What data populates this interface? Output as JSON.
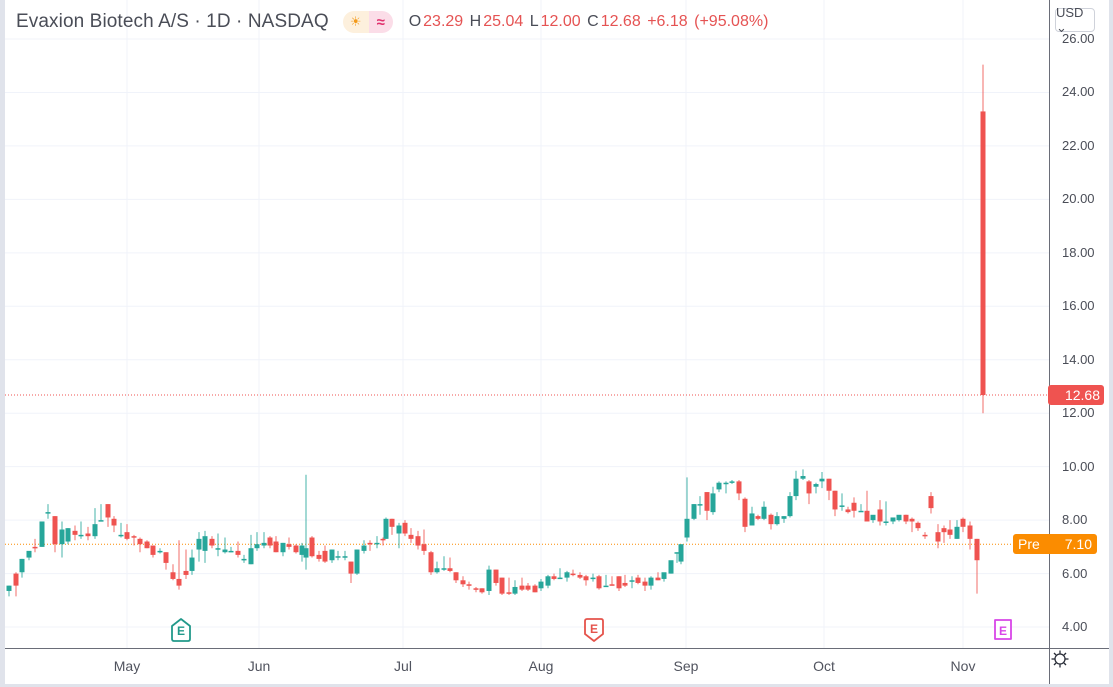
{
  "header": {
    "symbol_title": "Evaxion Biotech A/S · 1D · NASDAQ",
    "session_icon": "sun-icon",
    "session_glyph": "☀",
    "delay_icon": "wave-icon",
    "delay_glyph": "≈",
    "ohlc": {
      "open_key": "O",
      "open": "23.29",
      "high_key": "H",
      "high": "25.04",
      "low_key": "L",
      "low": "12.00",
      "close_key": "C",
      "close": "12.68",
      "change": "+6.18",
      "change_pct": "(+95.08%)"
    }
  },
  "currency_button": {
    "label": "USD ⌄"
  },
  "price_axis": {
    "ticks": [
      "26.00",
      "24.00",
      "22.00",
      "20.00",
      "18.00",
      "16.00",
      "14.00",
      "12.00",
      "10.00",
      "8.00",
      "6.00",
      "4.00"
    ],
    "last_price_tag": "12.68",
    "premarket_label": "Pre",
    "premarket_value": "7.10"
  },
  "time_axis": {
    "months": [
      {
        "label": "May",
        "x": 127
      },
      {
        "label": "Jun",
        "x": 259
      },
      {
        "label": "Jul",
        "x": 403
      },
      {
        "label": "Aug",
        "x": 541
      },
      {
        "label": "Sep",
        "x": 686
      },
      {
        "label": "Oct",
        "x": 824
      },
      {
        "label": "Nov",
        "x": 963
      }
    ]
  },
  "earnings_markers": [
    {
      "label": "E",
      "x": 181,
      "color": "#22998a",
      "shape": "house"
    },
    {
      "label": "E",
      "x": 594,
      "color": "#e5534b",
      "shape": "shield"
    },
    {
      "label": "E",
      "x": 1003,
      "color": "#d846e8",
      "shape": "square"
    }
  ],
  "settings_icon": "gear-icon",
  "colors": {
    "up": "#26a69a",
    "down": "#ef5350",
    "last_price": "#ef5350",
    "premarket": "#fb8c00",
    "grid": "#f0f3fa",
    "axis_text": "#4a4d57"
  },
  "chart_data": {
    "type": "candlestick",
    "title": "Evaxion Biotech A/S · 1D · NASDAQ",
    "ylabel": "USD",
    "ylim": [
      3.6,
      26.2
    ],
    "yticks": [
      4,
      6,
      8,
      10,
      12,
      14,
      16,
      18,
      20,
      22,
      24,
      26
    ],
    "xticks": [
      "May",
      "Jun",
      "Jul",
      "Aug",
      "Sep",
      "Oct",
      "Nov"
    ],
    "grid": true,
    "last_price": 12.68,
    "premarket_price": 7.1,
    "candles": [
      {
        "x": 9,
        "o": 5.35,
        "h": 5.55,
        "l": 5.15,
        "c": 5.55
      },
      {
        "x": 16,
        "o": 6.0,
        "h": 6.05,
        "l": 5.15,
        "c": 5.55
      },
      {
        "x": 22,
        "o": 6.05,
        "h": 6.55,
        "l": 5.85,
        "c": 6.55
      },
      {
        "x": 29,
        "o": 6.6,
        "h": 6.7,
        "l": 6.5,
        "c": 6.85
      },
      {
        "x": 35,
        "o": 7.0,
        "h": 7.3,
        "l": 6.8,
        "c": 6.95
      },
      {
        "x": 42,
        "o": 7.0,
        "h": 7.95,
        "l": 7.0,
        "c": 7.95
      },
      {
        "x": 48,
        "o": 8.3,
        "h": 8.6,
        "l": 8.05,
        "c": 8.3
      },
      {
        "x": 55,
        "o": 8.15,
        "h": 8.15,
        "l": 6.8,
        "c": 7.1
      },
      {
        "x": 62,
        "o": 7.1,
        "h": 7.95,
        "l": 6.6,
        "c": 7.65
      },
      {
        "x": 68,
        "o": 7.2,
        "h": 7.7,
        "l": 7.1,
        "c": 7.7
      },
      {
        "x": 75,
        "o": 7.6,
        "h": 7.8,
        "l": 7.25,
        "c": 7.45
      },
      {
        "x": 81,
        "o": 7.4,
        "h": 7.95,
        "l": 7.3,
        "c": 7.45
      },
      {
        "x": 88,
        "o": 7.5,
        "h": 7.75,
        "l": 7.25,
        "c": 7.4
      },
      {
        "x": 95,
        "o": 7.4,
        "h": 8.45,
        "l": 7.3,
        "c": 7.85
      },
      {
        "x": 101,
        "o": 8.0,
        "h": 8.6,
        "l": 7.95,
        "c": 8.0
      },
      {
        "x": 108,
        "o": 8.6,
        "h": 8.6,
        "l": 7.75,
        "c": 8.1
      },
      {
        "x": 114,
        "o": 8.05,
        "h": 8.15,
        "l": 7.55,
        "c": 7.8
      },
      {
        "x": 121,
        "o": 7.4,
        "h": 7.9,
        "l": 7.35,
        "c": 7.45
      },
      {
        "x": 127,
        "o": 7.55,
        "h": 7.85,
        "l": 7.25,
        "c": 7.3
      },
      {
        "x": 134,
        "o": 7.4,
        "h": 7.45,
        "l": 7.05,
        "c": 7.35
      },
      {
        "x": 140,
        "o": 7.3,
        "h": 7.35,
        "l": 6.8,
        "c": 7.1
      },
      {
        "x": 147,
        "o": 7.2,
        "h": 7.25,
        "l": 6.95,
        "c": 6.95
      },
      {
        "x": 153,
        "o": 7.05,
        "h": 7.05,
        "l": 6.6,
        "c": 6.7
      },
      {
        "x": 160,
        "o": 6.85,
        "h": 6.95,
        "l": 6.75,
        "c": 6.85
      },
      {
        "x": 166,
        "o": 6.8,
        "h": 6.8,
        "l": 6.15,
        "c": 6.4
      },
      {
        "x": 173,
        "o": 6.05,
        "h": 6.35,
        "l": 5.75,
        "c": 5.8
      },
      {
        "x": 179,
        "o": 5.8,
        "h": 7.25,
        "l": 5.4,
        "c": 5.55
      },
      {
        "x": 186,
        "o": 6.1,
        "h": 6.9,
        "l": 5.8,
        "c": 5.95
      },
      {
        "x": 192,
        "o": 6.1,
        "h": 6.9,
        "l": 5.95,
        "c": 6.6
      },
      {
        "x": 199,
        "o": 6.9,
        "h": 7.55,
        "l": 6.45,
        "c": 7.3
      },
      {
        "x": 205,
        "o": 6.85,
        "h": 7.6,
        "l": 6.4,
        "c": 7.4
      },
      {
        "x": 212,
        "o": 7.3,
        "h": 7.4,
        "l": 6.95,
        "c": 7.05
      },
      {
        "x": 218,
        "o": 6.95,
        "h": 7.5,
        "l": 6.65,
        "c": 6.95
      },
      {
        "x": 225,
        "o": 6.8,
        "h": 7.35,
        "l": 6.75,
        "c": 6.9
      },
      {
        "x": 231,
        "o": 6.8,
        "h": 7.0,
        "l": 6.8,
        "c": 6.85
      },
      {
        "x": 238,
        "o": 6.85,
        "h": 7.2,
        "l": 6.6,
        "c": 6.7
      },
      {
        "x": 244,
        "o": 6.55,
        "h": 6.7,
        "l": 6.4,
        "c": 6.55
      },
      {
        "x": 251,
        "o": 6.35,
        "h": 7.45,
        "l": 6.35,
        "c": 6.95
      },
      {
        "x": 257,
        "o": 6.95,
        "h": 7.55,
        "l": 6.85,
        "c": 7.1
      },
      {
        "x": 264,
        "o": 7.05,
        "h": 7.55,
        "l": 6.95,
        "c": 7.15
      },
      {
        "x": 270,
        "o": 7.35,
        "h": 7.4,
        "l": 6.95,
        "c": 7.05
      },
      {
        "x": 276,
        "o": 7.2,
        "h": 7.4,
        "l": 6.8,
        "c": 6.8
      },
      {
        "x": 283,
        "o": 6.8,
        "h": 7.15,
        "l": 6.65,
        "c": 7.15
      },
      {
        "x": 289,
        "o": 7.1,
        "h": 7.35,
        "l": 6.9,
        "c": 7.0
      },
      {
        "x": 296,
        "o": 7.05,
        "h": 7.1,
        "l": 6.75,
        "c": 6.8
      },
      {
        "x": 302,
        "o": 6.7,
        "h": 7.15,
        "l": 6.45,
        "c": 7.05
      },
      {
        "x": 306,
        "o": 6.6,
        "h": 9.7,
        "l": 6.15,
        "c": 6.95
      },
      {
        "x": 312,
        "o": 7.35,
        "h": 7.4,
        "l": 6.6,
        "c": 6.65
      },
      {
        "x": 319,
        "o": 6.7,
        "h": 6.85,
        "l": 6.45,
        "c": 6.55
      },
      {
        "x": 325,
        "o": 6.85,
        "h": 7.05,
        "l": 6.4,
        "c": 6.45
      },
      {
        "x": 332,
        "o": 6.5,
        "h": 6.9,
        "l": 6.4,
        "c": 6.9
      },
      {
        "x": 338,
        "o": 6.65,
        "h": 6.85,
        "l": 6.5,
        "c": 6.65
      },
      {
        "x": 345,
        "o": 6.6,
        "h": 6.85,
        "l": 6.5,
        "c": 6.65
      },
      {
        "x": 351,
        "o": 6.45,
        "h": 6.45,
        "l": 5.65,
        "c": 6.0
      },
      {
        "x": 357,
        "o": 6.0,
        "h": 6.9,
        "l": 5.95,
        "c": 6.9
      },
      {
        "x": 364,
        "o": 6.85,
        "h": 7.25,
        "l": 6.75,
        "c": 7.05
      },
      {
        "x": 370,
        "o": 7.15,
        "h": 7.25,
        "l": 6.85,
        "c": 7.1
      },
      {
        "x": 377,
        "o": 7.15,
        "h": 7.4,
        "l": 6.95,
        "c": 7.15
      },
      {
        "x": 383,
        "o": 7.3,
        "h": 7.35,
        "l": 7.05,
        "c": 7.25
      },
      {
        "x": 386,
        "o": 7.3,
        "h": 8.1,
        "l": 7.3,
        "c": 8.05
      },
      {
        "x": 392,
        "o": 8.05,
        "h": 8.05,
        "l": 7.45,
        "c": 7.75
      },
      {
        "x": 399,
        "o": 7.5,
        "h": 7.9,
        "l": 6.95,
        "c": 7.8
      },
      {
        "x": 405,
        "o": 7.9,
        "h": 8.0,
        "l": 7.4,
        "c": 7.5
      },
      {
        "x": 411,
        "o": 7.45,
        "h": 7.7,
        "l": 7.15,
        "c": 7.3
      },
      {
        "x": 418,
        "o": 7.4,
        "h": 7.6,
        "l": 6.9,
        "c": 7.05
      },
      {
        "x": 424,
        "o": 7.1,
        "h": 7.65,
        "l": 6.7,
        "c": 6.85
      },
      {
        "x": 431,
        "o": 6.8,
        "h": 6.85,
        "l": 5.95,
        "c": 6.05
      },
      {
        "x": 437,
        "o": 6.05,
        "h": 6.45,
        "l": 6.0,
        "c": 6.2
      },
      {
        "x": 444,
        "o": 6.15,
        "h": 6.65,
        "l": 6.1,
        "c": 6.2
      },
      {
        "x": 450,
        "o": 6.2,
        "h": 6.6,
        "l": 6.05,
        "c": 6.1
      },
      {
        "x": 456,
        "o": 6.05,
        "h": 6.05,
        "l": 5.65,
        "c": 5.75
      },
      {
        "x": 463,
        "o": 5.75,
        "h": 5.9,
        "l": 5.5,
        "c": 5.6
      },
      {
        "x": 469,
        "o": 5.6,
        "h": 5.7,
        "l": 5.4,
        "c": 5.55
      },
      {
        "x": 476,
        "o": 5.45,
        "h": 5.5,
        "l": 5.3,
        "c": 5.4
      },
      {
        "x": 482,
        "o": 5.45,
        "h": 5.45,
        "l": 5.25,
        "c": 5.3
      },
      {
        "x": 489,
        "o": 5.35,
        "h": 6.3,
        "l": 5.2,
        "c": 6.15
      },
      {
        "x": 496,
        "o": 6.15,
        "h": 6.15,
        "l": 5.55,
        "c": 5.65
      },
      {
        "x": 502,
        "o": 5.85,
        "h": 5.85,
        "l": 5.2,
        "c": 5.25
      },
      {
        "x": 509,
        "o": 5.3,
        "h": 5.85,
        "l": 5.2,
        "c": 5.25
      },
      {
        "x": 515,
        "o": 5.25,
        "h": 5.75,
        "l": 5.2,
        "c": 5.5
      },
      {
        "x": 522,
        "o": 5.55,
        "h": 5.85,
        "l": 5.35,
        "c": 5.4
      },
      {
        "x": 528,
        "o": 5.55,
        "h": 5.65,
        "l": 5.35,
        "c": 5.4
      },
      {
        "x": 535,
        "o": 5.55,
        "h": 5.6,
        "l": 5.3,
        "c": 5.3
      },
      {
        "x": 541,
        "o": 5.45,
        "h": 5.8,
        "l": 5.35,
        "c": 5.7
      },
      {
        "x": 548,
        "o": 5.55,
        "h": 5.95,
        "l": 5.45,
        "c": 5.9
      },
      {
        "x": 554,
        "o": 5.9,
        "h": 6.0,
        "l": 5.75,
        "c": 5.8
      },
      {
        "x": 560,
        "o": 5.8,
        "h": 6.2,
        "l": 5.8,
        "c": 5.85
      },
      {
        "x": 567,
        "o": 5.85,
        "h": 6.1,
        "l": 5.7,
        "c": 6.05
      },
      {
        "x": 573,
        "o": 6.0,
        "h": 6.15,
        "l": 5.9,
        "c": 5.95
      },
      {
        "x": 580,
        "o": 5.95,
        "h": 6.05,
        "l": 5.8,
        "c": 5.85
      },
      {
        "x": 586,
        "o": 5.9,
        "h": 5.95,
        "l": 5.55,
        "c": 5.75
      },
      {
        "x": 593,
        "o": 5.8,
        "h": 6.0,
        "l": 5.7,
        "c": 5.85
      },
      {
        "x": 599,
        "o": 5.9,
        "h": 5.95,
        "l": 5.4,
        "c": 5.45
      },
      {
        "x": 606,
        "o": 5.55,
        "h": 5.95,
        "l": 5.55,
        "c": 5.55
      },
      {
        "x": 612,
        "o": 5.6,
        "h": 5.9,
        "l": 5.55,
        "c": 5.55
      },
      {
        "x": 619,
        "o": 5.9,
        "h": 5.9,
        "l": 5.35,
        "c": 5.45
      },
      {
        "x": 625,
        "o": 5.65,
        "h": 5.95,
        "l": 5.5,
        "c": 5.55
      },
      {
        "x": 632,
        "o": 5.75,
        "h": 5.9,
        "l": 5.45,
        "c": 5.75
      },
      {
        "x": 638,
        "o": 5.85,
        "h": 5.95,
        "l": 5.6,
        "c": 5.65
      },
      {
        "x": 645,
        "o": 5.7,
        "h": 5.85,
        "l": 5.35,
        "c": 5.55
      },
      {
        "x": 651,
        "o": 5.55,
        "h": 5.9,
        "l": 5.4,
        "c": 5.85
      },
      {
        "x": 658,
        "o": 5.85,
        "h": 6.05,
        "l": 5.75,
        "c": 5.75
      },
      {
        "x": 664,
        "o": 5.8,
        "h": 5.95,
        "l": 5.7,
        "c": 6.05
      },
      {
        "x": 671,
        "o": 6.0,
        "h": 6.35,
        "l": 6.0,
        "c": 6.5
      },
      {
        "x": 677,
        "o": 6.8,
        "h": 6.8,
        "l": 6.4,
        "c": 6.8
      },
      {
        "x": 681,
        "o": 6.45,
        "h": 6.8,
        "l": 6.35,
        "c": 7.1
      },
      {
        "x": 687,
        "o": 7.35,
        "h": 9.6,
        "l": 7.2,
        "c": 8.05
      },
      {
        "x": 694,
        "o": 8.05,
        "h": 8.6,
        "l": 8.0,
        "c": 8.6
      },
      {
        "x": 700,
        "o": 8.6,
        "h": 8.9,
        "l": 8.2,
        "c": 8.6
      },
      {
        "x": 707,
        "o": 9.05,
        "h": 9.05,
        "l": 8.0,
        "c": 8.35
      },
      {
        "x": 713,
        "o": 8.3,
        "h": 9.25,
        "l": 8.2,
        "c": 9.0
      },
      {
        "x": 719,
        "o": 9.15,
        "h": 9.45,
        "l": 9.05,
        "c": 9.4
      },
      {
        "x": 726,
        "o": 9.35,
        "h": 9.45,
        "l": 9.0,
        "c": 9.4
      },
      {
        "x": 732,
        "o": 9.4,
        "h": 9.5,
        "l": 9.35,
        "c": 9.45
      },
      {
        "x": 739,
        "o": 9.45,
        "h": 9.5,
        "l": 8.75,
        "c": 9.0
      },
      {
        "x": 745,
        "o": 8.8,
        "h": 8.85,
        "l": 7.55,
        "c": 7.75
      },
      {
        "x": 752,
        "o": 7.8,
        "h": 8.5,
        "l": 7.8,
        "c": 8.25
      },
      {
        "x": 758,
        "o": 8.15,
        "h": 8.2,
        "l": 8.0,
        "c": 8.05
      },
      {
        "x": 764,
        "o": 8.05,
        "h": 8.7,
        "l": 8.0,
        "c": 8.5
      },
      {
        "x": 771,
        "o": 8.2,
        "h": 8.25,
        "l": 7.65,
        "c": 7.85
      },
      {
        "x": 777,
        "o": 7.85,
        "h": 8.3,
        "l": 7.8,
        "c": 8.15
      },
      {
        "x": 784,
        "o": 8.05,
        "h": 8.15,
        "l": 7.9,
        "c": 8.15
      },
      {
        "x": 790,
        "o": 8.15,
        "h": 9.05,
        "l": 8.1,
        "c": 8.9
      },
      {
        "x": 796,
        "o": 8.9,
        "h": 9.85,
        "l": 8.75,
        "c": 9.55
      },
      {
        "x": 803,
        "o": 9.55,
        "h": 9.9,
        "l": 9.5,
        "c": 9.65
      },
      {
        "x": 809,
        "o": 9.45,
        "h": 9.5,
        "l": 8.6,
        "c": 9.0
      },
      {
        "x": 816,
        "o": 9.25,
        "h": 9.4,
        "l": 9.0,
        "c": 9.35
      },
      {
        "x": 822,
        "o": 9.45,
        "h": 9.8,
        "l": 9.2,
        "c": 9.55
      },
      {
        "x": 829,
        "o": 9.55,
        "h": 9.55,
        "l": 8.75,
        "c": 9.1
      },
      {
        "x": 835,
        "o": 9.1,
        "h": 9.1,
        "l": 8.15,
        "c": 8.4
      },
      {
        "x": 842,
        "o": 8.5,
        "h": 9.0,
        "l": 8.35,
        "c": 8.55
      },
      {
        "x": 848,
        "o": 8.4,
        "h": 8.5,
        "l": 8.25,
        "c": 8.3
      },
      {
        "x": 854,
        "o": 8.65,
        "h": 8.85,
        "l": 8.1,
        "c": 8.35
      },
      {
        "x": 861,
        "o": 8.35,
        "h": 8.6,
        "l": 8.35,
        "c": 8.35
      },
      {
        "x": 867,
        "o": 8.35,
        "h": 9.1,
        "l": 7.95,
        "c": 7.95
      },
      {
        "x": 873,
        "o": 8.0,
        "h": 8.1,
        "l": 7.9,
        "c": 8.2
      },
      {
        "x": 880,
        "o": 8.4,
        "h": 8.75,
        "l": 7.8,
        "c": 7.95
      },
      {
        "x": 886,
        "o": 7.95,
        "h": 8.7,
        "l": 7.8,
        "c": 7.95
      },
      {
        "x": 893,
        "o": 7.95,
        "h": 8.1,
        "l": 7.85,
        "c": 8.1
      },
      {
        "x": 899,
        "o": 8.0,
        "h": 8.15,
        "l": 7.95,
        "c": 8.2
      },
      {
        "x": 906,
        "o": 8.2,
        "h": 8.2,
        "l": 7.85,
        "c": 7.95
      },
      {
        "x": 912,
        "o": 8.05,
        "h": 8.1,
        "l": 7.55,
        "c": 7.95
      },
      {
        "x": 918,
        "o": 7.9,
        "h": 7.95,
        "l": 7.6,
        "c": 7.7
      },
      {
        "x": 925,
        "o": 7.45,
        "h": 7.55,
        "l": 7.3,
        "c": 7.4
      },
      {
        "x": 931,
        "o": 8.9,
        "h": 9.05,
        "l": 8.25,
        "c": 8.45
      },
      {
        "x": 938,
        "o": 7.55,
        "h": 7.85,
        "l": 6.95,
        "c": 7.2
      },
      {
        "x": 944,
        "o": 7.7,
        "h": 7.8,
        "l": 7.15,
        "c": 7.55
      },
      {
        "x": 950,
        "o": 7.65,
        "h": 8.0,
        "l": 7.3,
        "c": 7.45
      },
      {
        "x": 957,
        "o": 7.3,
        "h": 8.0,
        "l": 7.3,
        "c": 7.75
      },
      {
        "x": 963,
        "o": 8.05,
        "h": 8.1,
        "l": 7.55,
        "c": 7.75
      },
      {
        "x": 970,
        "o": 7.8,
        "h": 7.95,
        "l": 6.9,
        "c": 7.3
      },
      {
        "x": 977,
        "o": 7.3,
        "h": 7.3,
        "l": 5.25,
        "c": 6.5
      },
      {
        "x": 983,
        "o": 23.29,
        "h": 25.04,
        "l": 12.0,
        "c": 12.68
      }
    ]
  }
}
